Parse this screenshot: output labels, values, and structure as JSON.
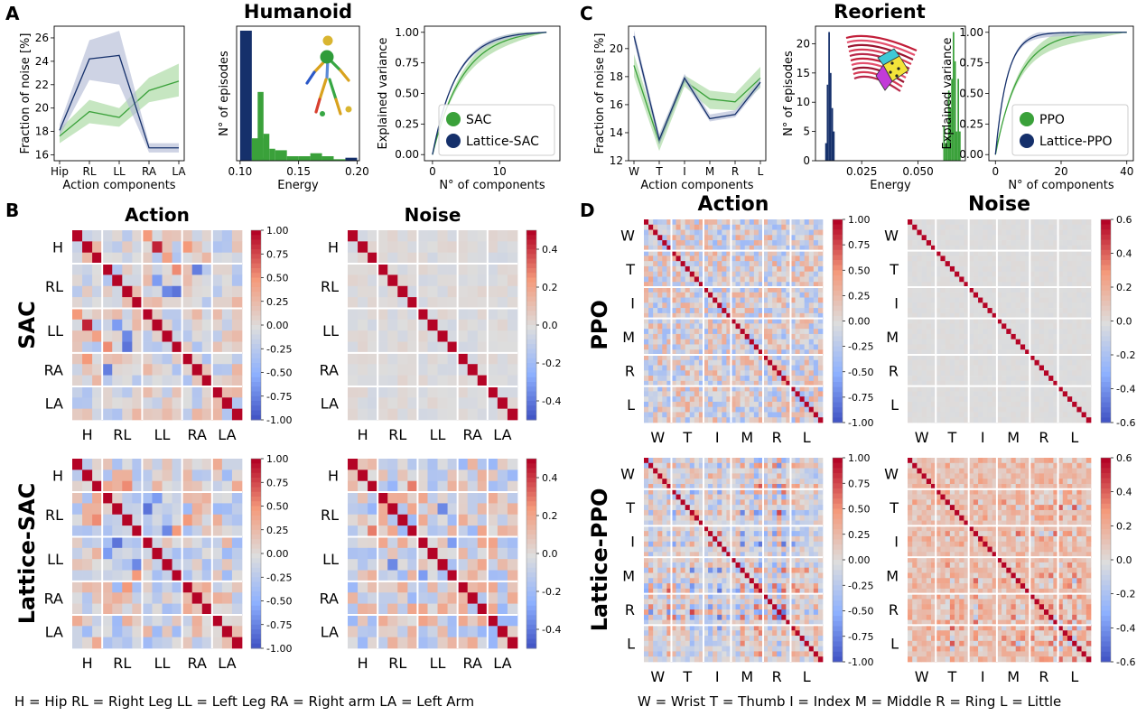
{
  "panel_letters": [
    "A",
    "B",
    "C",
    "D"
  ],
  "legends": {
    "humanoid": "H = Hip  RL = Right Leg  LL = Left Leg  RA = Right arm  LA = Left Arm",
    "hand": "W = Wrist  T = Thumb  I = Index  M = Middle  R = Ring  L = Little"
  },
  "colors": {
    "baseline": "#3aa13a",
    "lattice": "#15306b",
    "baseline_band": "#a8d8a0",
    "lattice_band": "#b3bcd6"
  },
  "chart_data": [
    {
      "id": "A-noise",
      "type": "line",
      "title": "",
      "xlabel": "Action components",
      "ylabel": "Fraction of noise [%]",
      "categories": [
        "Hip",
        "RL",
        "LL",
        "RA",
        "LA"
      ],
      "ylim": [
        15.5,
        27
      ],
      "yticks": [
        16,
        18,
        20,
        22,
        24,
        26
      ],
      "series": [
        {
          "name": "SAC",
          "values": [
            17.6,
            19.7,
            19.2,
            21.5,
            22.3
          ],
          "lower": [
            17.0,
            18.7,
            18.4,
            20.5,
            21.0
          ],
          "upper": [
            18.2,
            20.7,
            20.0,
            22.6,
            23.8
          ]
        },
        {
          "name": "Lattice-SAC",
          "values": [
            18.1,
            24.2,
            24.5,
            16.6,
            16.6
          ],
          "lower": [
            17.6,
            22.4,
            22.0,
            16.2,
            16.2
          ],
          "upper": [
            18.6,
            25.8,
            26.6,
            17.0,
            17.0
          ]
        }
      ]
    },
    {
      "id": "A-energy",
      "type": "bar",
      "title": "",
      "suptitle": "Humanoid",
      "xlabel": "Energy",
      "ylabel": "N° of episodes",
      "xlim": [
        0.097,
        0.202
      ],
      "xticks": [
        0.1,
        0.15,
        0.2
      ],
      "xtick_labels": [
        "0.10",
        "0.15",
        "0.20"
      ],
      "ylim": [
        0,
        90
      ],
      "series": [
        {
          "name": "Lattice-SAC",
          "bins": [
            [
              0.1,
              0.11,
              87
            ],
            [
              0.11,
              0.12,
              2
            ],
            [
              0.19,
              0.2,
              2
            ]
          ]
        },
        {
          "name": "SAC",
          "bins": [
            [
              0.11,
              0.12,
              15
            ],
            [
              0.115,
              0.12,
              46
            ],
            [
              0.12,
              0.125,
              18
            ],
            [
              0.125,
              0.13,
              8
            ],
            [
              0.13,
              0.14,
              7
            ],
            [
              0.14,
              0.15,
              3
            ],
            [
              0.15,
              0.16,
              3
            ],
            [
              0.16,
              0.17,
              5
            ],
            [
              0.17,
              0.18,
              3
            ],
            [
              0.18,
              0.19,
              1
            ]
          ]
        }
      ]
    },
    {
      "id": "A-variance",
      "type": "line",
      "title": "",
      "xlabel": "N° of components",
      "ylabel": "Explained variance",
      "xlim": [
        -1.2,
        19
      ],
      "xticks": [
        0,
        10
      ],
      "ylim": [
        -0.05,
        1.05
      ],
      "yticks": [
        0.0,
        0.25,
        0.5,
        0.75,
        1.0
      ],
      "ytick_labels": [
        "0.00",
        "0.25",
        "0.50",
        "0.75",
        "1.00"
      ],
      "n_max": 17,
      "series": [
        {
          "name": "SAC",
          "k": 0.22,
          "band": 0.05
        },
        {
          "name": "Lattice-SAC",
          "k": 0.28,
          "band": 0.02
        }
      ],
      "legend": [
        "SAC",
        "Lattice-SAC"
      ]
    },
    {
      "id": "C-noise",
      "type": "line",
      "title": "",
      "xlabel": "Action components",
      "ylabel": "Fraction of noise [%]",
      "categories": [
        "W",
        "T",
        "I",
        "M",
        "R",
        "L"
      ],
      "ylim": [
        12,
        21.6
      ],
      "yticks": [
        12,
        14,
        16,
        18,
        20
      ],
      "series": [
        {
          "name": "PPO",
          "values": [
            18.8,
            13.3,
            17.7,
            16.4,
            16.2,
            17.9
          ],
          "lower": [
            18.0,
            12.7,
            17.3,
            15.7,
            15.6,
            17.2
          ],
          "upper": [
            19.6,
            13.8,
            18.1,
            17.0,
            16.8,
            18.7
          ]
        },
        {
          "name": "Lattice-PPO",
          "values": [
            20.9,
            13.5,
            17.9,
            15.0,
            15.3,
            17.6
          ],
          "lower": [
            20.5,
            13.1,
            17.6,
            14.8,
            15.1,
            17.3
          ],
          "upper": [
            21.3,
            13.9,
            18.2,
            15.3,
            15.6,
            17.9
          ]
        }
      ]
    },
    {
      "id": "C-energy",
      "type": "bar",
      "title": "",
      "suptitle": "Reorient",
      "xlabel": "Energy",
      "ylabel": "N° of episodes",
      "xlim": [
        0.0045,
        0.071
      ],
      "xticks": [
        0.025,
        0.05
      ],
      "xtick_labels": [
        "0.025",
        "0.050"
      ],
      "ylim": [
        0,
        23
      ],
      "yticks": [
        0,
        5,
        10,
        15,
        20
      ],
      "series": [
        {
          "name": "Lattice-PPO",
          "bins": [
            [
              0.0088,
              0.0095,
              3
            ],
            [
              0.0095,
              0.0102,
              13
            ],
            [
              0.0102,
              0.0109,
              22
            ],
            [
              0.0109,
              0.0116,
              15
            ],
            [
              0.0116,
              0.0123,
              9
            ],
            [
              0.0123,
              0.013,
              5
            ]
          ]
        },
        {
          "name": "PPO",
          "bins": [
            [
              0.0612,
              0.0619,
              6
            ],
            [
              0.0619,
              0.0626,
              3
            ],
            [
              0.0626,
              0.0633,
              4
            ],
            [
              0.0633,
              0.064,
              12
            ],
            [
              0.064,
              0.0647,
              9
            ],
            [
              0.0647,
              0.0654,
              14
            ],
            [
              0.0654,
              0.0661,
              22
            ],
            [
              0.0661,
              0.0668,
              17
            ],
            [
              0.0668,
              0.0675,
              5
            ],
            [
              0.0675,
              0.0682,
              14
            ],
            [
              0.0682,
              0.0689,
              5
            ]
          ]
        }
      ]
    },
    {
      "id": "C-variance",
      "type": "line",
      "title": "",
      "xlabel": "N° of components",
      "ylabel": "Explained variance",
      "xlim": [
        -2,
        42
      ],
      "xticks": [
        0,
        20,
        40
      ],
      "ylim": [
        -0.05,
        1.05
      ],
      "yticks": [
        0.0,
        0.25,
        0.5,
        0.75,
        1.0
      ],
      "ytick_labels": [
        "0.00",
        "0.25",
        "0.50",
        "0.75",
        "1.00"
      ],
      "n_max": 40,
      "series": [
        {
          "name": "PPO",
          "k": 0.14,
          "band": 0.06
        },
        {
          "name": "Lattice-PPO",
          "k": 0.28,
          "band": 0.03
        }
      ],
      "legend": [
        "PPO",
        "Lattice-PPO"
      ]
    },
    {
      "id": "B-SAC-action",
      "type": "heatmap",
      "title": "Action",
      "row_title": "SAC",
      "n": 17,
      "group_bounds": [
        3,
        7,
        11,
        14
      ],
      "labels": [
        "H",
        "RL",
        "LL",
        "RA",
        "LA"
      ],
      "label_centers": [
        1.5,
        5,
        9,
        12.5,
        15.5
      ],
      "colorbar": {
        "min": -1.0,
        "max": 1.0,
        "ticks": [
          "1.00",
          "0.75",
          "0.50",
          "0.25",
          "0.00",
          "-0.25",
          "-0.50",
          "-0.75",
          "-1.00"
        ]
      },
      "amp": 0.3,
      "seed": 11,
      "strong": [
        [
          1,
          8,
          0.9
        ],
        [
          3,
          12,
          -0.75
        ],
        [
          5,
          10,
          -0.8
        ],
        [
          9,
          5,
          -0.7
        ],
        [
          10,
          3,
          0.55
        ],
        [
          0,
          7,
          0.5
        ],
        [
          2,
          9,
          0.45
        ],
        [
          8,
          4,
          -0.6
        ],
        [
          11,
          1,
          0.5
        ]
      ]
    },
    {
      "id": "B-SAC-noise",
      "type": "heatmap",
      "title": "Noise",
      "n": 17,
      "group_bounds": [
        3,
        7,
        11,
        14
      ],
      "labels": [
        "H",
        "RL",
        "LL",
        "RA",
        "LA"
      ],
      "label_centers": [
        1.5,
        5,
        9,
        12.5,
        15.5
      ],
      "colorbar": {
        "min": -0.5,
        "max": 0.5,
        "ticks": [
          "0.4",
          "0.2",
          "0.0",
          "-0.2",
          "-0.4"
        ]
      },
      "amp": 0.04,
      "seed": 23,
      "strong": []
    },
    {
      "id": "B-Lattice-action",
      "type": "heatmap",
      "title": "",
      "row_title": "Lattice-SAC",
      "n": 17,
      "group_bounds": [
        3,
        7,
        11,
        14
      ],
      "labels": [
        "H",
        "RL",
        "LL",
        "RA",
        "LA"
      ],
      "label_centers": [
        1.5,
        5,
        9,
        12.5,
        15.5
      ],
      "colorbar": {
        "min": -1.0,
        "max": 1.0,
        "ticks": [
          "1.00",
          "0.75",
          "0.50",
          "0.25",
          "0.00",
          "-0.25",
          "-0.50",
          "-0.75",
          "-1.00"
        ]
      },
      "amp": 0.4,
      "seed": 37,
      "strong": [
        [
          4,
          7,
          -0.8
        ],
        [
          6,
          9,
          -0.7
        ],
        [
          3,
          8,
          0.6
        ],
        [
          5,
          11,
          0.5
        ],
        [
          2,
          5,
          0.55
        ],
        [
          8,
          3,
          -0.6
        ],
        [
          10,
          6,
          0.5
        ]
      ]
    },
    {
      "id": "B-Lattice-noise",
      "type": "heatmap",
      "title": "",
      "n": 17,
      "group_bounds": [
        3,
        7,
        11,
        14
      ],
      "labels": [
        "H",
        "RL",
        "LL",
        "RA",
        "LA"
      ],
      "label_centers": [
        1.5,
        5,
        9,
        12.5,
        15.5
      ],
      "colorbar": {
        "min": -0.5,
        "max": 0.5,
        "ticks": [
          "0.4",
          "0.2",
          "0.0",
          "-0.2",
          "-0.4"
        ]
      },
      "amp": 0.22,
      "seed": 41,
      "strong": [
        [
          4,
          9,
          -0.35
        ],
        [
          2,
          6,
          0.3
        ],
        [
          7,
          10,
          -0.3
        ]
      ]
    },
    {
      "id": "D-PPO-action",
      "type": "heatmap",
      "title": "Action",
      "row_title": "PPO",
      "n": 39,
      "group_bounds": [
        6,
        13,
        19,
        26,
        32
      ],
      "labels": [
        "W",
        "T",
        "I",
        "M",
        "R",
        "L"
      ],
      "label_centers": [
        3,
        9.5,
        16,
        22.5,
        29,
        35.5
      ],
      "colorbar": {
        "min": -1.0,
        "max": 1.0,
        "ticks": [
          "1.00",
          "0.75",
          "0.50",
          "0.25",
          "0.00",
          "-0.25",
          "-0.50",
          "-0.75",
          "-1.00"
        ]
      },
      "amp": 0.42,
      "seed": 53,
      "strong": []
    },
    {
      "id": "D-PPO-noise",
      "type": "heatmap",
      "title": "Noise",
      "n": 39,
      "group_bounds": [
        6,
        13,
        19,
        26,
        32
      ],
      "labels": [
        "W",
        "T",
        "I",
        "M",
        "R",
        "L"
      ],
      "label_centers": [
        3,
        9.5,
        16,
        22.5,
        29,
        35.5
      ],
      "colorbar": {
        "min": -0.6,
        "max": 0.6,
        "ticks": [
          "0.6",
          "0.4",
          "0.2",
          "0.0",
          "-0.2",
          "-0.4",
          "-0.6"
        ]
      },
      "amp": 0.015,
      "seed": 67,
      "strong": []
    },
    {
      "id": "D-Lattice-action",
      "type": "heatmap",
      "title": "",
      "row_title": "Lattice-PPO",
      "n": 39,
      "group_bounds": [
        6,
        13,
        19,
        26,
        32
      ],
      "labels": [
        "W",
        "T",
        "I",
        "M",
        "R",
        "L"
      ],
      "label_centers": [
        3,
        9.5,
        16,
        22.5,
        29,
        35.5
      ],
      "colorbar": {
        "min": -1.0,
        "max": 1.0,
        "ticks": [
          "1.00",
          "0.75",
          "0.50",
          "0.25",
          "0.00",
          "-0.25",
          "-0.50",
          "-0.75",
          "-1.00"
        ]
      },
      "amp": 0.85,
      "seed": 71,
      "strong": [],
      "structured": true
    },
    {
      "id": "D-Lattice-noise",
      "type": "heatmap",
      "title": "",
      "n": 39,
      "group_bounds": [
        6,
        13,
        19,
        26,
        32
      ],
      "labels": [
        "W",
        "T",
        "I",
        "M",
        "R",
        "L"
      ],
      "label_centers": [
        3,
        9.5,
        16,
        22.5,
        29,
        35.5
      ],
      "colorbar": {
        "min": -0.6,
        "max": 0.6,
        "ticks": [
          "0.6",
          "0.4",
          "0.2",
          "0.0",
          "-0.2",
          "-0.4",
          "-0.6"
        ]
      },
      "amp": 0.3,
      "seed": 83,
      "strong": [],
      "structured": true,
      "positive_bias": 0.14
    }
  ]
}
